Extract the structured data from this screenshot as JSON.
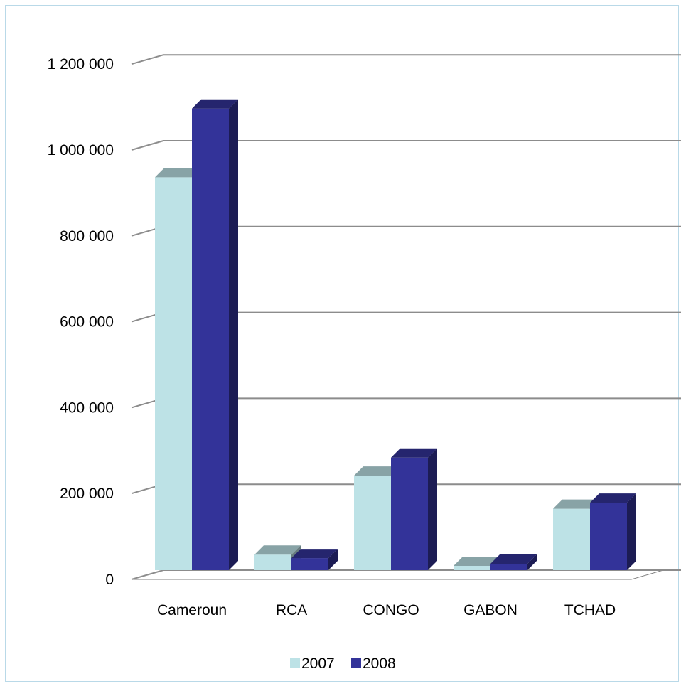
{
  "chart_data": {
    "type": "bar",
    "title": "",
    "xlabel": "",
    "ylabel": "",
    "categories": [
      "Cameroun",
      "RCA",
      "CONGO",
      "GABON",
      "TCHAD"
    ],
    "series": [
      {
        "name": "2007",
        "color": "#bde2e6",
        "values": [
          915000,
          36000,
          220000,
          10000,
          143000
        ]
      },
      {
        "name": "2008",
        "color": "#333399",
        "values": [
          1075000,
          28000,
          262000,
          15000,
          157000
        ]
      }
    ],
    "ylim": [
      0,
      1200000
    ],
    "ytick_values": [
      0,
      200000,
      400000,
      600000,
      800000,
      1000000,
      1200000
    ],
    "ytick_labels": [
      "0",
      "200 000",
      "400 000",
      "600 000",
      "800 000",
      "1 000 000",
      "1 200 000"
    ],
    "grid": true,
    "legend_position": "bottom",
    "style": "3d-clustered-column"
  }
}
